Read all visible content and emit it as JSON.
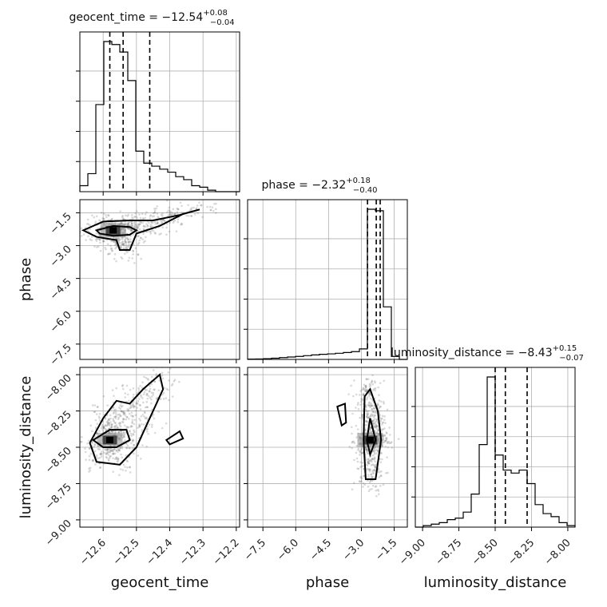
{
  "chart_data": {
    "type": "corner",
    "parameters": [
      {
        "name": "geocent_time",
        "title": {
          "main": "geocent_time = −12.54",
          "plus": "+0.08",
          "minus": "−0.04"
        },
        "axis_label": "geocent_time",
        "range": [
          -12.67,
          -12.19
        ],
        "ticks": [
          -12.6,
          -12.5,
          -12.4,
          -12.3,
          -12.2
        ],
        "tick_labels": [
          "−12.6",
          "−12.5",
          "−12.4",
          "−12.3",
          "−12.2"
        ],
        "quantiles": [
          -12.58,
          -12.54,
          -12.46
        ],
        "hist": {
          "edges": [
            -12.67,
            -12.646,
            -12.622,
            -12.598,
            -12.574,
            -12.55,
            -12.526,
            -12.502,
            -12.478,
            -12.454,
            -12.43,
            -12.406,
            -12.382,
            -12.358,
            -12.334,
            -12.31,
            -12.286,
            -12.262,
            -12.238,
            -12.214,
            -12.19
          ],
          "counts": [
            0.04,
            0.12,
            0.58,
            1.0,
            0.98,
            0.93,
            0.74,
            0.27,
            0.19,
            0.17,
            0.15,
            0.13,
            0.1,
            0.08,
            0.04,
            0.03,
            0.01,
            0.0,
            0.0,
            0.0
          ]
        }
      },
      {
        "name": "phase",
        "title": {
          "main": "phase = −2.32",
          "plus": "+0.18",
          "minus": "−0.40"
        },
        "axis_label": "phase",
        "range": [
          -8.2,
          -0.9
        ],
        "ticks": [
          -7.5,
          -6.0,
          -4.5,
          -3.0,
          -1.5
        ],
        "tick_labels": [
          "−7.5",
          "−6.0",
          "−4.5",
          "−3.0",
          "−1.5"
        ],
        "quantiles": [
          -2.72,
          -2.32,
          -2.14
        ],
        "hist": {
          "edges": [
            -8.2,
            -7.835,
            -7.47,
            -7.105,
            -6.74,
            -6.375,
            -6.01,
            -5.645,
            -5.28,
            -4.915,
            -4.55,
            -4.185,
            -3.82,
            -3.455,
            -3.09,
            -2.725,
            -2.36,
            -1.995,
            -1.63,
            -1.265,
            -0.9
          ],
          "counts": [
            0.002,
            0.003,
            0.005,
            0.008,
            0.012,
            0.016,
            0.02,
            0.025,
            0.03,
            0.034,
            0.037,
            0.041,
            0.046,
            0.052,
            0.07,
            1.0,
            0.99,
            0.35,
            0.02,
            0.0
          ]
        }
      },
      {
        "name": "luminosity_distance",
        "title": {
          "main": "luminosity_distance = −8.43",
          "plus": "+0.15",
          "minus": "−0.07"
        },
        "axis_label": "luminosity_distance",
        "range": [
          -9.05,
          -7.95
        ],
        "ticks": [
          -9.0,
          -8.75,
          -8.5,
          -8.25,
          -8.0
        ],
        "tick_labels": [
          "−9.00",
          "−8.75",
          "−8.50",
          "−8.25",
          "−8.00"
        ],
        "quantiles": [
          -8.5,
          -8.43,
          -8.28
        ],
        "hist": {
          "edges": [
            -9.05,
            -8.995,
            -8.94,
            -8.885,
            -8.83,
            -8.775,
            -8.72,
            -8.665,
            -8.61,
            -8.555,
            -8.5,
            -8.445,
            -8.39,
            -8.335,
            -8.28,
            -8.225,
            -8.17,
            -8.115,
            -8.06,
            -8.005,
            -7.95
          ],
          "counts": [
            0.0,
            0.01,
            0.02,
            0.03,
            0.05,
            0.06,
            0.1,
            0.22,
            0.55,
            1.0,
            0.48,
            0.38,
            0.36,
            0.38,
            0.29,
            0.15,
            0.09,
            0.07,
            0.03,
            0.01
          ]
        }
      }
    ],
    "joint": [
      {
        "x": "geocent_time",
        "y": "phase",
        "peak": [
          -12.57,
          -2.3
        ],
        "y_ticks": [
          -7.5,
          -6.0,
          -4.5,
          -3.0,
          -1.5
        ],
        "y_tick_labels": [
          "−7.5",
          "−6.0",
          "−4.5",
          "−3.0",
          "−1.5"
        ],
        "contour_outer": [
          [
            -12.66,
            -2.3
          ],
          [
            -12.6,
            -1.9
          ],
          [
            -12.52,
            -1.85
          ],
          [
            -12.45,
            -1.85
          ],
          [
            -12.37,
            -1.6
          ],
          [
            -12.31,
            -1.35
          ],
          [
            -12.36,
            -1.55
          ],
          [
            -12.43,
            -2.1
          ],
          [
            -12.5,
            -2.45
          ],
          [
            -12.52,
            -3.2
          ],
          [
            -12.55,
            -3.2
          ],
          [
            -12.56,
            -2.75
          ],
          [
            -12.62,
            -2.6
          ]
        ],
        "contour_inner": [
          [
            -12.62,
            -2.3
          ],
          [
            -12.57,
            -2.1
          ],
          [
            -12.52,
            -2.15
          ],
          [
            -12.5,
            -2.3
          ],
          [
            -12.52,
            -2.5
          ],
          [
            -12.57,
            -2.55
          ],
          [
            -12.61,
            -2.45
          ]
        ]
      },
      {
        "x": "geocent_time",
        "y": "luminosity_distance",
        "peak": [
          -12.58,
          -8.45
        ],
        "y_ticks": [
          -9.0,
          -8.75,
          -8.5,
          -8.25,
          -8.0
        ],
        "y_tick_labels": [
          "−9.00",
          "−8.75",
          "−8.50",
          "−8.25",
          "−8.00"
        ],
        "contour_outer": [
          [
            -12.62,
            -8.6
          ],
          [
            -12.64,
            -8.47
          ],
          [
            -12.6,
            -8.3
          ],
          [
            -12.56,
            -8.18
          ],
          [
            -12.52,
            -8.2
          ],
          [
            -12.48,
            -8.1
          ],
          [
            -12.43,
            -8.0
          ],
          [
            -12.42,
            -8.1
          ],
          [
            -12.47,
            -8.35
          ],
          [
            -12.5,
            -8.5
          ],
          [
            -12.55,
            -8.62
          ]
        ],
        "contour_inner": [
          [
            -12.63,
            -8.45
          ],
          [
            -12.58,
            -8.38
          ],
          [
            -12.53,
            -8.38
          ],
          [
            -12.52,
            -8.45
          ],
          [
            -12.56,
            -8.5
          ],
          [
            -12.6,
            -8.5
          ]
        ],
        "contour_island": [
          [
            -12.41,
            -8.45
          ],
          [
            -12.37,
            -8.39
          ],
          [
            -12.36,
            -8.44
          ],
          [
            -12.4,
            -8.48
          ]
        ]
      },
      {
        "x": "phase",
        "y": "luminosity_distance",
        "peak": [
          -2.6,
          -8.45
        ],
        "contour_outer": [
          [
            -2.8,
            -8.72
          ],
          [
            -2.9,
            -8.45
          ],
          [
            -2.85,
            -8.15
          ],
          [
            -2.6,
            -8.1
          ],
          [
            -2.25,
            -8.25
          ],
          [
            -2.1,
            -8.45
          ],
          [
            -2.35,
            -8.72
          ]
        ],
        "contour_inner": [
          [
            -2.75,
            -8.45
          ],
          [
            -2.6,
            -8.3
          ],
          [
            -2.35,
            -8.45
          ],
          [
            -2.6,
            -8.55
          ]
        ],
        "contour_island": [
          [
            -4.1,
            -8.22
          ],
          [
            -3.75,
            -8.2
          ],
          [
            -3.7,
            -8.33
          ],
          [
            -3.9,
            -8.35
          ]
        ]
      }
    ]
  }
}
